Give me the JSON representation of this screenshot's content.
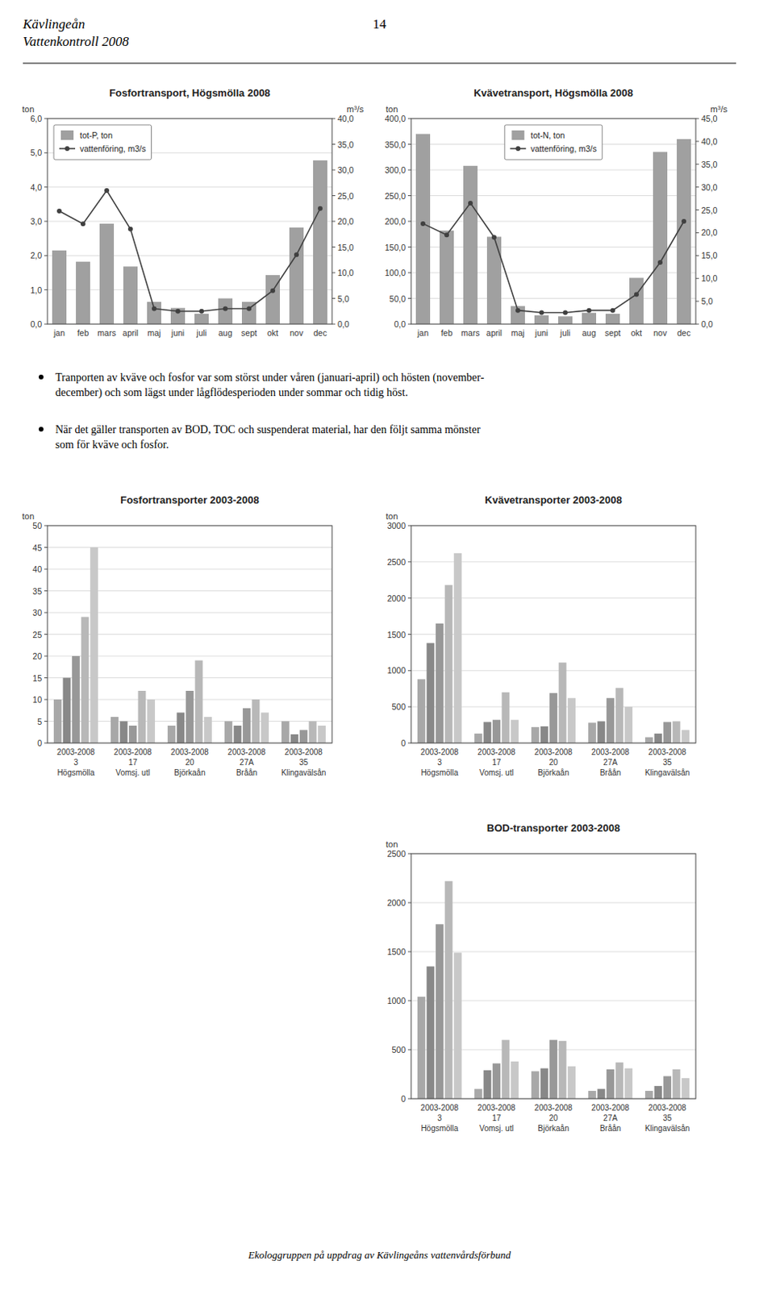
{
  "header": [
    "Kävlingeån",
    "Vattenkontroll 2008"
  ],
  "page_number": "14",
  "bullets": [
    "Tranporten av kväve och fosfor var som störst under våren (januari-april) och hösten (november-\ndecember) och som lägst under lågflödesperioden under sommar och tidig höst.",
    "När det gäller transporten av BOD, TOC och suspenderat material, har den följt samma mönster\nsom för kväve och fosfor."
  ],
  "footer": "Ekologgruppen på uppdrag av Kävlingeåns vattenvårdsförbund",
  "chart_data": [
    {
      "type": "bar",
      "title": "Fosfortransport, Högsmölla 2008",
      "y_label": "ton",
      "y2_label": "m³/s",
      "categories": [
        "jan",
        "feb",
        "mars",
        "april",
        "maj",
        "juni",
        "juli",
        "aug",
        "sept",
        "okt",
        "nov",
        "dec"
      ],
      "series": [
        {
          "name": "tot-P, ton",
          "type": "bar",
          "color": "#a0a0a0",
          "values": [
            2.15,
            1.82,
            2.93,
            1.68,
            0.65,
            0.47,
            0.3,
            0.75,
            0.65,
            1.43,
            2.82,
            4.78
          ]
        },
        {
          "name": "vattenföring, m3/s",
          "type": "line",
          "axis": "y2",
          "color": "#404040",
          "marker": "circle",
          "values": [
            22.0,
            19.5,
            26.0,
            18.5,
            3.0,
            2.5,
            2.5,
            3.0,
            3.0,
            6.5,
            13.5,
            22.5
          ]
        }
      ],
      "ylim": [
        0,
        6.0
      ],
      "yticks": [
        {
          "value": 0.0,
          "label": "0,0"
        },
        {
          "value": 1.0,
          "label": "1,0"
        },
        {
          "value": 2.0,
          "label": "2,0"
        },
        {
          "value": 3.0,
          "label": "3,0"
        },
        {
          "value": 4.0,
          "label": "4,0"
        },
        {
          "value": 5.0,
          "label": "5,0"
        },
        {
          "value": 6.0,
          "label": "6,0"
        }
      ],
      "y2lim": [
        0,
        40.0
      ],
      "y2ticks": [
        {
          "value": 0.0,
          "label": "0,0"
        },
        {
          "value": 5.0,
          "label": "5,0"
        },
        {
          "value": 10.0,
          "label": "10,0"
        },
        {
          "value": 15.0,
          "label": "15,0"
        },
        {
          "value": 20.0,
          "label": "20,0"
        },
        {
          "value": 25.0,
          "label": "25,0"
        },
        {
          "value": 30.0,
          "label": "30,0"
        },
        {
          "value": 35.0,
          "label": "35,0"
        },
        {
          "value": 40.0,
          "label": "40,0"
        }
      ],
      "grid": true,
      "legend": "upper left"
    },
    {
      "type": "bar",
      "title": "Kvävetransport, Högsmölla 2008",
      "y_label": "ton",
      "y2_label": "m³/s",
      "categories": [
        "jan",
        "feb",
        "mars",
        "april",
        "maj",
        "juni",
        "juli",
        "aug",
        "sept",
        "okt",
        "nov",
        "dec"
      ],
      "series": [
        {
          "name": "tot-N, ton",
          "type": "bar",
          "color": "#a0a0a0",
          "values": [
            370,
            182,
            308,
            170,
            35,
            17,
            15,
            22,
            20,
            90,
            335,
            360
          ]
        },
        {
          "name": "vattenföring, m3/s",
          "type": "line",
          "axis": "y2",
          "color": "#404040",
          "marker": "circle",
          "values": [
            22.0,
            19.5,
            26.5,
            19.0,
            3.0,
            2.5,
            2.5,
            3.0,
            3.0,
            6.5,
            13.5,
            22.5
          ]
        }
      ],
      "ylim": [
        0,
        400
      ],
      "yticks": [
        {
          "value": 0,
          "label": "0,0"
        },
        {
          "value": 50,
          "label": "50,0"
        },
        {
          "value": 100,
          "label": "100,0"
        },
        {
          "value": 150,
          "label": "150,0"
        },
        {
          "value": 200,
          "label": "200,0"
        },
        {
          "value": 250,
          "label": "250,0"
        },
        {
          "value": 300,
          "label": "300,0"
        },
        {
          "value": 350,
          "label": "350,0"
        },
        {
          "value": 400,
          "label": "400,0"
        }
      ],
      "y2lim": [
        0,
        45.0
      ],
      "y2ticks": [
        {
          "value": 0.0,
          "label": "0,0"
        },
        {
          "value": 5.0,
          "label": "5,0"
        },
        {
          "value": 10.0,
          "label": "10,0"
        },
        {
          "value": 15.0,
          "label": "15,0"
        },
        {
          "value": 20.0,
          "label": "20,0"
        },
        {
          "value": 25.0,
          "label": "25,0"
        },
        {
          "value": 30.0,
          "label": "30,0"
        },
        {
          "value": 35.0,
          "label": "35,0"
        },
        {
          "value": 40.0,
          "label": "40,0"
        },
        {
          "value": 45.0,
          "label": "45,0"
        }
      ],
      "grid": true,
      "legend": "upper center"
    },
    {
      "type": "bar",
      "title": "Fosfortransporter 2003-2008",
      "y_label": "ton",
      "categories": [
        "2003-2008\n3\nHögsmölla",
        "2003-2008\n17\nVomsj. utl",
        "2003-2008\n20\nBjörkaån",
        "2003-2008\n27A\nBråån",
        "2003-2008\n35\nKlingavälsån"
      ],
      "series": [
        {
          "color": "#a8a8a8",
          "values": [
            10,
            6,
            4,
            5,
            5
          ]
        },
        {
          "color": "#888888",
          "values": [
            15,
            5,
            7,
            4,
            2
          ]
        },
        {
          "color": "#989898",
          "values": [
            20,
            4,
            12,
            8,
            3
          ]
        },
        {
          "color": "#b8b8b8",
          "values": [
            29,
            12,
            19,
            10,
            5
          ]
        },
        {
          "color": "#c8c8c8",
          "values": [
            45,
            10,
            6,
            7,
            4
          ]
        }
      ],
      "ylim": [
        0,
        50
      ],
      "yticks": [
        0,
        5,
        10,
        15,
        20,
        25,
        30,
        35,
        40,
        45,
        50
      ],
      "grid": true
    },
    {
      "type": "bar",
      "title": "Kvävetransporter 2003-2008",
      "y_label": "ton",
      "categories": [
        "2003-2008\n3\nHögsmölla",
        "2003-2008\n17\nVomsj. utl",
        "2003-2008\n20\nBjörkaån",
        "2003-2008\n27A\nBråån",
        "2003-2008\n35\nKlingavälsån"
      ],
      "series": [
        {
          "color": "#a8a8a8",
          "values": [
            880,
            130,
            220,
            280,
            80
          ]
        },
        {
          "color": "#888888",
          "values": [
            1380,
            290,
            230,
            300,
            130
          ]
        },
        {
          "color": "#989898",
          "values": [
            1650,
            320,
            690,
            620,
            290
          ]
        },
        {
          "color": "#b8b8b8",
          "values": [
            2180,
            700,
            1110,
            760,
            300
          ]
        },
        {
          "color": "#c8c8c8",
          "values": [
            2620,
            320,
            620,
            500,
            180
          ]
        }
      ],
      "ylim": [
        0,
        3000
      ],
      "yticks": [
        0,
        500,
        1000,
        1500,
        2000,
        2500,
        3000
      ],
      "grid": true
    },
    {
      "type": "bar",
      "title": "BOD-transporter 2003-2008",
      "y_label": "ton",
      "categories": [
        "2003-2008\n3\nHögsmölla",
        "2003-2008\n17\nVomsj. utl",
        "2003-2008\n20\nBjörkaån",
        "2003-2008\n27A\nBråån",
        "2003-2008\n35\nKlingavälsån"
      ],
      "series": [
        {
          "color": "#a8a8a8",
          "values": [
            1040,
            100,
            280,
            80,
            80
          ]
        },
        {
          "color": "#888888",
          "values": [
            1350,
            290,
            310,
            100,
            130
          ]
        },
        {
          "color": "#989898",
          "values": [
            1780,
            360,
            600,
            300,
            230
          ]
        },
        {
          "color": "#b8b8b8",
          "values": [
            2220,
            600,
            590,
            370,
            300
          ]
        },
        {
          "color": "#c8c8c8",
          "values": [
            1490,
            380,
            330,
            310,
            210
          ]
        }
      ],
      "ylim": [
        0,
        2500
      ],
      "yticks": [
        0,
        500,
        1000,
        1500,
        2000,
        2500
      ],
      "grid": true
    }
  ]
}
